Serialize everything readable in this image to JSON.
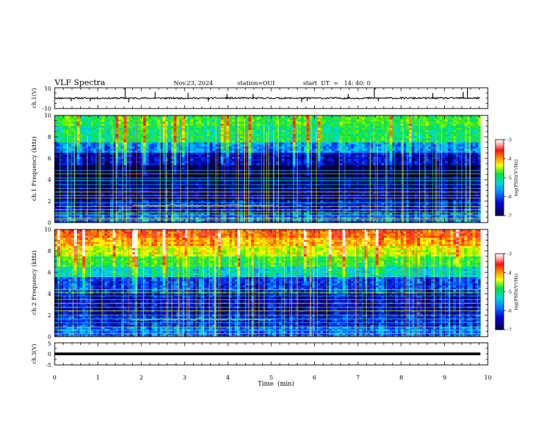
{
  "header": {
    "title": "VLF Spectra",
    "date": "Nov.23, 2024",
    "station": "station=OUI",
    "start": "start  UT  =   14: 40: 0"
  },
  "colorbar": {
    "label": "log(PSD)(V²/Hz)",
    "ticks": [
      -3,
      -4,
      -5,
      -6,
      -7
    ],
    "colors": [
      "#ffffff",
      "#ffc8c8",
      "#ff2020",
      "#ff9a00",
      "#ffff00",
      "#00e050",
      "#00c8c8",
      "#0070ff",
      "#0000a0",
      "#00003a"
    ]
  },
  "chart_data": [
    {
      "type": "line",
      "name": "ch1-waveform",
      "ylabel": "ch.1(V)",
      "ylim": [
        -10,
        10
      ],
      "ytick_labels": [
        "10",
        "-10"
      ],
      "xlim": [
        0,
        10
      ],
      "baseline_v": 0,
      "spikes": [
        {
          "t": 0.38,
          "v": -3
        },
        {
          "t": 0.82,
          "v": -3
        },
        {
          "t": 1.63,
          "v": 10
        },
        {
          "t": 1.71,
          "v": -4
        },
        {
          "t": 2.32,
          "v": 6
        },
        {
          "t": 3.08,
          "v": 5
        },
        {
          "t": 3.55,
          "v": -3
        },
        {
          "t": 3.98,
          "v": 4
        },
        {
          "t": 4.58,
          "v": 4
        },
        {
          "t": 5.7,
          "v": -4
        },
        {
          "t": 5.83,
          "v": -3
        },
        {
          "t": 6.78,
          "v": 4
        },
        {
          "t": 7.38,
          "v": 10
        },
        {
          "t": 7.47,
          "v": -3
        },
        {
          "t": 8.73,
          "v": 5
        },
        {
          "t": 9.43,
          "v": 6
        },
        {
          "t": 9.53,
          "v": 10
        }
      ]
    },
    {
      "type": "heatmap",
      "name": "ch1-spectrogram",
      "ylabel": "ch.1 Frequency (kHz)",
      "ylim": [
        0,
        10
      ],
      "yticks": [
        0,
        2,
        4,
        6,
        8,
        10
      ],
      "xlim": [
        0,
        10
      ],
      "data_extent_min": 9.83,
      "clim": [
        -7,
        -3
      ],
      "band_log_psd": [
        {
          "f": [
            0,
            1.0
          ],
          "v": -6.1
        },
        {
          "f": [
            1.0,
            2.0
          ],
          "v": -6.4
        },
        {
          "f": [
            2.0,
            4.0
          ],
          "v": -6.7
        },
        {
          "f": [
            4.0,
            5.3
          ],
          "v": -6.9
        },
        {
          "f": [
            5.3,
            6.5
          ],
          "v": -6.5
        },
        {
          "f": [
            6.5,
            7.5
          ],
          "v": -5.9
        },
        {
          "f": [
            7.5,
            9.0
          ],
          "v": -5.2
        },
        {
          "f": [
            9.0,
            10.0
          ],
          "v": -5.0
        }
      ],
      "lines_khz": [
        0.25,
        0.4,
        0.7,
        0.95,
        1.2,
        1.5,
        1.85,
        2.3,
        2.55,
        2.85,
        3.2,
        3.55,
        3.9,
        4.15,
        4.55,
        4.85
      ]
    },
    {
      "type": "heatmap",
      "name": "ch2-spectrogram",
      "ylabel": "ch.2 Frequency (kHz)",
      "ylim": [
        0,
        10
      ],
      "yticks": [
        0,
        2,
        4,
        6,
        8,
        10
      ],
      "xlim": [
        0,
        10
      ],
      "data_extent_min": 9.83,
      "clim": [
        -7,
        -3
      ],
      "band_log_psd": [
        {
          "f": [
            0,
            1.0
          ],
          "v": -6.0
        },
        {
          "f": [
            1.0,
            2.0
          ],
          "v": -6.3
        },
        {
          "f": [
            2.0,
            4.0
          ],
          "v": -6.5
        },
        {
          "f": [
            4.0,
            5.5
          ],
          "v": -6.2
        },
        {
          "f": [
            5.5,
            6.5
          ],
          "v": -5.5
        },
        {
          "f": [
            6.5,
            7.5
          ],
          "v": -5.0
        },
        {
          "f": [
            7.5,
            8.5
          ],
          "v": -4.5
        },
        {
          "f": [
            8.5,
            9.3
          ],
          "v": -4.1
        },
        {
          "f": [
            9.3,
            10.0
          ],
          "v": -3.8
        }
      ],
      "lines_khz": [
        0.3,
        0.6,
        0.9,
        1.3,
        1.65,
        2.0,
        2.4,
        2.75,
        3.1,
        3.45,
        3.8,
        4.1,
        4.4
      ]
    },
    {
      "type": "line",
      "name": "ch3-waveform",
      "ylabel": "ch.3(V)",
      "ylim": [
        -5,
        5
      ],
      "ytick_labels": [
        "5",
        "0",
        "-5"
      ],
      "xlim": [
        0,
        10
      ],
      "xlabel": "Time  (min)",
      "xtick_labels": [
        "0",
        "1",
        "2",
        "3",
        "4",
        "5",
        "6",
        "7",
        "8",
        "9",
        "10"
      ],
      "baseline_v": 0
    }
  ]
}
